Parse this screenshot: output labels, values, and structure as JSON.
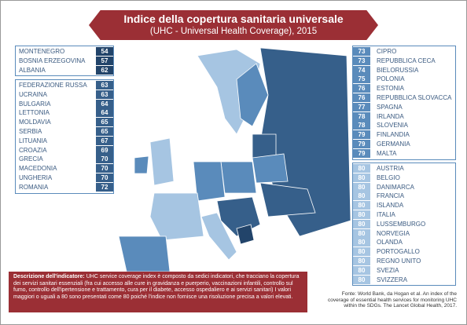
{
  "title": "Indice della copertura sanitaria universale",
  "subtitle": "(UHC - Universal Health Coverage), 2015",
  "groups": [
    {
      "color": "#22446a",
      "rows": [
        {
          "country": "MONTENEGRO",
          "value": 54
        },
        {
          "country": "BOSNIA ERZEGOVINA",
          "value": 57
        },
        {
          "country": "ALBANIA",
          "value": 62
        }
      ]
    },
    {
      "color": "#365f8a",
      "rows": [
        {
          "country": "FEDERAZIONE RUSSA",
          "value": 63
        },
        {
          "country": "UCRAINA",
          "value": 63
        },
        {
          "country": "BULGARIA",
          "value": 64
        },
        {
          "country": "LETTONIA",
          "value": 64
        },
        {
          "country": "MOLDAVIA",
          "value": 65
        },
        {
          "country": "SERBIA",
          "value": 65
        },
        {
          "country": "LITUANIA",
          "value": 67
        },
        {
          "country": "CROAZIA",
          "value": 69
        },
        {
          "country": "GRECIA",
          "value": 70
        },
        {
          "country": "MACEDONIA",
          "value": 70
        },
        {
          "country": "UNGHERIA",
          "value": 70
        },
        {
          "country": "ROMANIA",
          "value": 72
        }
      ]
    },
    {
      "color": "#5a8bbb",
      "rows": [
        {
          "country": "CIPRO",
          "value": 73
        },
        {
          "country": "REPUBBLICA CECA",
          "value": 73
        },
        {
          "country": "BIELORUSSIA",
          "value": 74
        },
        {
          "country": "POLONIA",
          "value": 75
        },
        {
          "country": "ESTONIA",
          "value": 76
        },
        {
          "country": "REPUBBLICA SLOVACCA",
          "value": 76
        },
        {
          "country": "SPAGNA",
          "value": 77
        },
        {
          "country": "IRLANDA",
          "value": 78
        },
        {
          "country": "SLOVENIA",
          "value": 78
        },
        {
          "country": "FINLANDIA",
          "value": 79
        },
        {
          "country": "GERMANIA",
          "value": 79
        },
        {
          "country": "MALTA",
          "value": 79
        }
      ]
    },
    {
      "color": "#a6c5e2",
      "rows": [
        {
          "country": "AUSTRIA",
          "value": 80
        },
        {
          "country": "BELGIO",
          "value": 80
        },
        {
          "country": "DANIMARCA",
          "value": 80
        },
        {
          "country": "FRANCIA",
          "value": 80
        },
        {
          "country": "ISLANDA",
          "value": 80
        },
        {
          "country": "ITALIA",
          "value": 80
        },
        {
          "country": "LUSSEMBURGO",
          "value": 80
        },
        {
          "country": "NORVEGIA",
          "value": 80
        },
        {
          "country": "OLANDA",
          "value": 80
        },
        {
          "country": "PORTOGALLO",
          "value": 80
        },
        {
          "country": "REGNO UNITO",
          "value": 80
        },
        {
          "country": "SVEZIA",
          "value": 80
        },
        {
          "country": "SVIZZERA",
          "value": 80
        }
      ]
    }
  ],
  "description": {
    "label": "Descrizione dell'indicatore:",
    "text": "UHC service coverage index è composto da sedici indicatori, che tracciano la copertura dei servizi sanitari essenziali (fra cui accesso alle cure in gravidanza e puerperio, vaccinazioni infantili, controllo sul fumo, controllo dell'ipertensione e trattamento, cura per il diabete, accesso ospedaliero e ai servizi sanitari) I valori maggiori o uguali a 80 sono presentati come 80 poiché l'indice non fornisce una risoluzione precisa a valori elevati."
  },
  "source": "Fonte: World Bank, da Hogan et al. An index of the coverage of essential health services for monitoring UHC within the SDGs. The Lancet Global Health, 2017."
}
